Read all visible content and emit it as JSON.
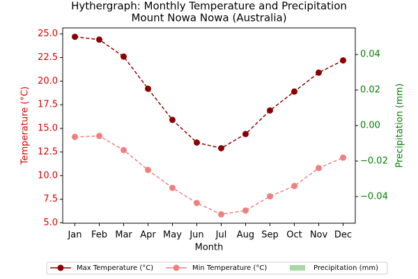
{
  "chart_data": {
    "type": "hythergraph",
    "title": [
      "Hythergraph: Monthly Temperature and Precipitation",
      "Mount Nowa Nowa (Australia)"
    ],
    "xlabel": "Month",
    "ylabel": "Temperature (°C)",
    "y2label": "Precipitation (mm)",
    "categories": [
      "Jan",
      "Feb",
      "Mar",
      "Apr",
      "May",
      "Jun",
      "Jul",
      "Aug",
      "Sep",
      "Oct",
      "Nov",
      "Dec"
    ],
    "series": [
      {
        "name": "Max Temperature (°C)",
        "color": "#8b0000",
        "kind": "line",
        "values": [
          24.7,
          24.4,
          22.6,
          19.2,
          15.9,
          13.5,
          12.9,
          14.4,
          16.9,
          18.9,
          20.9,
          22.2
        ]
      },
      {
        "name": "Min Temperature (°C)",
        "color": "#f08080",
        "kind": "line",
        "values": [
          14.1,
          14.2,
          12.7,
          10.6,
          8.7,
          7.1,
          5.9,
          6.3,
          7.8,
          8.9,
          10.8,
          11.9
        ]
      },
      {
        "name": "Precipitation (mm)",
        "color": "#a8d8a8",
        "kind": "bar",
        "axis": "y2",
        "values": [
          0,
          0,
          0,
          0,
          0,
          0,
          0,
          0,
          0,
          0,
          0,
          0
        ]
      }
    ],
    "ylim": [
      4.96,
      25.64
    ],
    "yticks": [
      {
        "value": 5,
        "label": "5.0"
      },
      {
        "value": 7.5,
        "label": "7.5"
      },
      {
        "value": 10,
        "label": "10.0"
      },
      {
        "value": 12.5,
        "label": "12.5"
      },
      {
        "value": 15,
        "label": "15.0"
      },
      {
        "value": 17.5,
        "label": "17.5"
      },
      {
        "value": 20,
        "label": "20.0"
      },
      {
        "value": 22.5,
        "label": "22.5"
      },
      {
        "value": 25,
        "label": "25.0"
      }
    ],
    "y2lim": [
      -0.055,
      0.055
    ],
    "y2ticks": [
      {
        "value": -0.04,
        "label": "−0.04"
      },
      {
        "value": -0.02,
        "label": "−0.02"
      },
      {
        "value": 0,
        "label": "0.00"
      },
      {
        "value": 0.02,
        "label": "0.02"
      },
      {
        "value": 0.04,
        "label": "0.04"
      }
    ],
    "legend": "lower center"
  }
}
